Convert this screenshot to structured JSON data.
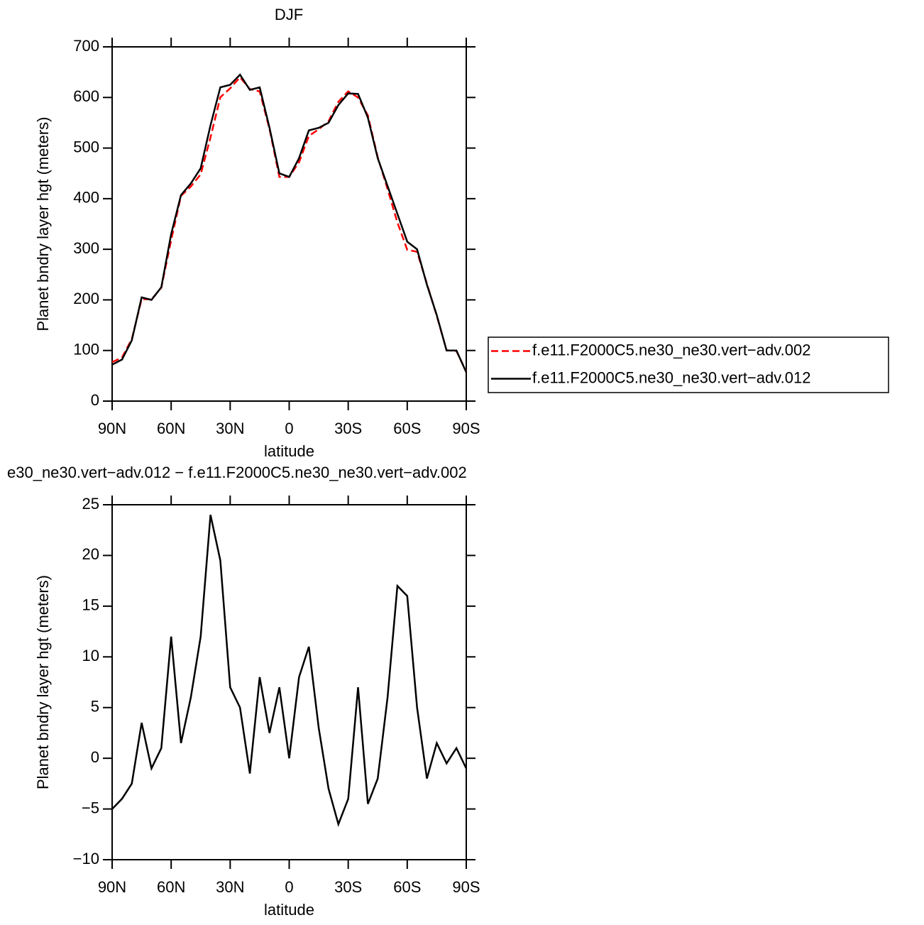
{
  "chart_data": [
    {
      "type": "line",
      "title": "DJF",
      "ylabel": "Planet bndry layer hgt (meters)",
      "xlabel": "latitude",
      "x": [
        90,
        85,
        80,
        75,
        70,
        65,
        60,
        55,
        50,
        45,
        40,
        35,
        30,
        25,
        20,
        15,
        10,
        5,
        0,
        -5,
        -10,
        -15,
        -20,
        -25,
        -30,
        -35,
        -40,
        -45,
        -50,
        -55,
        -60,
        -65,
        -70,
        -75,
        -80,
        -85,
        -90
      ],
      "xlim": [
        90,
        -90
      ],
      "xticks": [
        {
          "value": 90,
          "label": "90N"
        },
        {
          "value": 60,
          "label": "60N"
        },
        {
          "value": 30,
          "label": "30N"
        },
        0,
        {
          "value": -30,
          "label": "30S"
        },
        {
          "value": -60,
          "label": "60S"
        },
        {
          "value": -90,
          "label": "90S"
        }
      ],
      "ylim": [
        0,
        700
      ],
      "yticks": [
        0,
        100,
        200,
        300,
        400,
        500,
        600,
        700
      ],
      "legend": "right",
      "series": [
        {
          "name": "f.e11.F2000C5.ne30_ne30.vert−adv.002",
          "color": "#ff0000",
          "dash": "dashed",
          "values": [
            77,
            86,
            122.5,
            201.5,
            201,
            224,
            318,
            405.5,
            424,
            448,
            521,
            600.5,
            618,
            640,
            616.5,
            612,
            537.5,
            443,
            443,
            472,
            524,
            537,
            553,
            591.5,
            612,
            600,
            564.5,
            482,
            419,
            353,
            299,
            295,
            232,
            168.5,
            100.5,
            99,
            58
          ]
        },
        {
          "name": "f.e11.F2000C5.ne30_ne30.vert−adv.012",
          "color": "#000000",
          "dash": "solid",
          "values": [
            72,
            82,
            120,
            205,
            200,
            225,
            330,
            407,
            430,
            460,
            545,
            620,
            625,
            645,
            615,
            620,
            540,
            450,
            443,
            480,
            535,
            540,
            550,
            585,
            608,
            607,
            560,
            480,
            425,
            370,
            315,
            300,
            230,
            170,
            100,
            100,
            57
          ]
        }
      ]
    },
    {
      "type": "line",
      "title": "e30_ne30.vert−adv.012 − f.e11.F2000C5.ne30_ne30.vert−adv.002",
      "ylabel": "Planet bndry layer hgt (meters)",
      "xlabel": "latitude",
      "x": [
        90,
        85,
        80,
        75,
        70,
        65,
        60,
        55,
        50,
        45,
        40,
        35,
        30,
        25,
        20,
        15,
        10,
        5,
        0,
        -5,
        -10,
        -15,
        -20,
        -25,
        -30,
        -35,
        -40,
        -45,
        -50,
        -55,
        -60,
        -65,
        -70,
        -75,
        -80,
        -85,
        -90
      ],
      "xlim": [
        90,
        -90
      ],
      "xticks": [
        {
          "value": 90,
          "label": "90N"
        },
        {
          "value": 60,
          "label": "60N"
        },
        {
          "value": 30,
          "label": "30N"
        },
        0,
        {
          "value": -30,
          "label": "30S"
        },
        {
          "value": -60,
          "label": "60S"
        },
        {
          "value": -90,
          "label": "90S"
        }
      ],
      "ylim": [
        -10,
        25
      ],
      "yticks": [
        {
          "value": -10,
          "label": "−10"
        },
        {
          "value": -5,
          "label": "−5"
        },
        0,
        5,
        10,
        15,
        20,
        25
      ],
      "series": [
        {
          "color": "#000000",
          "dash": "solid",
          "values": [
            -5,
            -4,
            -2.5,
            3.5,
            -1,
            1,
            12,
            1.5,
            6,
            12,
            24,
            19.5,
            7,
            5,
            -1.5,
            8,
            2.5,
            7,
            0,
            8,
            11,
            3,
            -3,
            -6.5,
            -4,
            7,
            -4.5,
            -2,
            6,
            17,
            16,
            5,
            -2,
            1.5,
            -0.5,
            1,
            -1
          ]
        }
      ]
    }
  ]
}
